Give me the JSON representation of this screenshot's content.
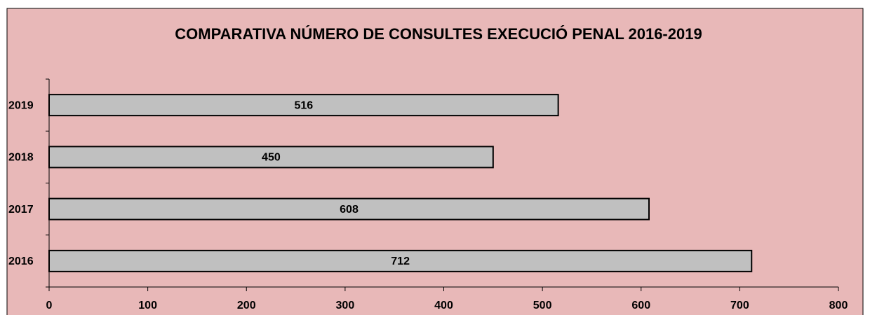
{
  "chart_data": {
    "type": "bar",
    "orientation": "horizontal",
    "title": "COMPARATIVA NÚMERO DE CONSULTES EXECUCIÓ PENAL 2016-2019",
    "categories": [
      "2016",
      "2017",
      "2018",
      "2019"
    ],
    "values": [
      712,
      608,
      450,
      516
    ],
    "color": "#c0c0c0",
    "xlim": [
      0,
      800
    ],
    "xticks": [
      0,
      100,
      200,
      300,
      400,
      500,
      600,
      700,
      800
    ],
    "grid": false
  }
}
